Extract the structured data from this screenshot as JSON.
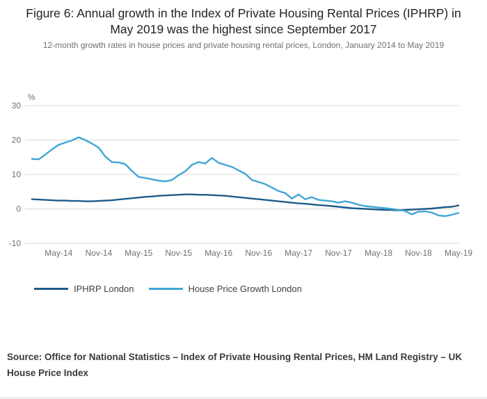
{
  "colors": {
    "series": [
      "#1f5c8a",
      "#41a5d6"
    ],
    "grid": "#d9d9d9",
    "axis_text": "#707070"
  },
  "source": "Source: Office for National Statistics – Index of Private Housing Rental Prices, HM Land Registry – UK House Price Index",
  "chart_data": {
    "type": "line",
    "title": "Figure 6: Annual growth in the Index of Private Housing Rental Prices (IPHRP) in May 2019 was the highest since September 2017",
    "subtitle": "12-month growth rates in house prices and private housing rental prices, London, January 2014 to May 2019",
    "unit_label": "%",
    "ylim": [
      -10,
      30
    ],
    "yticks": [
      30,
      20,
      10,
      0,
      -10
    ],
    "grid": true,
    "legend_position": "bottom",
    "xtick_labels": [
      "May-14",
      "Nov-14",
      "May-15",
      "Nov-15",
      "May-16",
      "Nov-16",
      "May-17",
      "Nov-17",
      "May-18",
      "Nov-18",
      "May-19"
    ],
    "x": [
      "Jan-14",
      "Feb-14",
      "Mar-14",
      "Apr-14",
      "May-14",
      "Jun-14",
      "Jul-14",
      "Aug-14",
      "Sep-14",
      "Oct-14",
      "Nov-14",
      "Dec-14",
      "Jan-15",
      "Feb-15",
      "Mar-15",
      "Apr-15",
      "May-15",
      "Jun-15",
      "Jul-15",
      "Aug-15",
      "Sep-15",
      "Oct-15",
      "Nov-15",
      "Dec-15",
      "Jan-16",
      "Feb-16",
      "Mar-16",
      "Apr-16",
      "May-16",
      "Jun-16",
      "Jul-16",
      "Aug-16",
      "Sep-16",
      "Oct-16",
      "Nov-16",
      "Dec-16",
      "Jan-17",
      "Feb-17",
      "Mar-17",
      "Apr-17",
      "May-17",
      "Jun-17",
      "Jul-17",
      "Aug-17",
      "Sep-17",
      "Oct-17",
      "Nov-17",
      "Dec-17",
      "Jan-18",
      "Feb-18",
      "Mar-18",
      "Apr-18",
      "May-18",
      "Jun-18",
      "Jul-18",
      "Aug-18",
      "Sep-18",
      "Oct-18",
      "Nov-18",
      "Dec-18",
      "Jan-19",
      "Feb-19",
      "Mar-19",
      "Apr-19",
      "May-19"
    ],
    "series": [
      {
        "name": "IPHRP London",
        "values": [
          2.8,
          2.7,
          2.6,
          2.5,
          2.4,
          2.4,
          2.3,
          2.3,
          2.2,
          2.2,
          2.3,
          2.4,
          2.5,
          2.7,
          2.9,
          3.1,
          3.3,
          3.5,
          3.6,
          3.8,
          3.9,
          4.0,
          4.1,
          4.2,
          4.2,
          4.1,
          4.1,
          4.0,
          3.9,
          3.8,
          3.6,
          3.4,
          3.2,
          3.0,
          2.8,
          2.6,
          2.4,
          2.2,
          2.0,
          1.8,
          1.6,
          1.5,
          1.3,
          1.1,
          1.0,
          0.8,
          0.6,
          0.4,
          0.2,
          0.1,
          0.0,
          -0.1,
          -0.2,
          -0.3,
          -0.3,
          -0.4,
          -0.3,
          -0.2,
          -0.1,
          0.0,
          0.1,
          0.3,
          0.5,
          0.6,
          1.0
        ]
      },
      {
        "name": "House Price Growth London",
        "values": [
          14.5,
          14.4,
          15.8,
          17.3,
          18.6,
          19.3,
          19.9,
          20.8,
          20.0,
          19.0,
          17.8,
          15.2,
          13.6,
          13.5,
          13.0,
          11.0,
          9.3,
          9.0,
          8.6,
          8.2,
          8.0,
          8.4,
          9.8,
          10.9,
          12.8,
          13.6,
          13.2,
          14.8,
          13.4,
          12.8,
          12.2,
          11.2,
          10.2,
          8.4,
          7.8,
          7.2,
          6.2,
          5.2,
          4.6,
          3.0,
          4.2,
          2.8,
          3.4,
          2.6,
          2.4,
          2.2,
          1.8,
          2.2,
          1.8,
          1.2,
          0.8,
          0.6,
          0.4,
          0.2,
          0.0,
          -0.3,
          -0.6,
          -1.6,
          -0.8,
          -0.7,
          -1.1,
          -1.9,
          -2.1,
          -1.7,
          -1.2
        ]
      }
    ]
  }
}
